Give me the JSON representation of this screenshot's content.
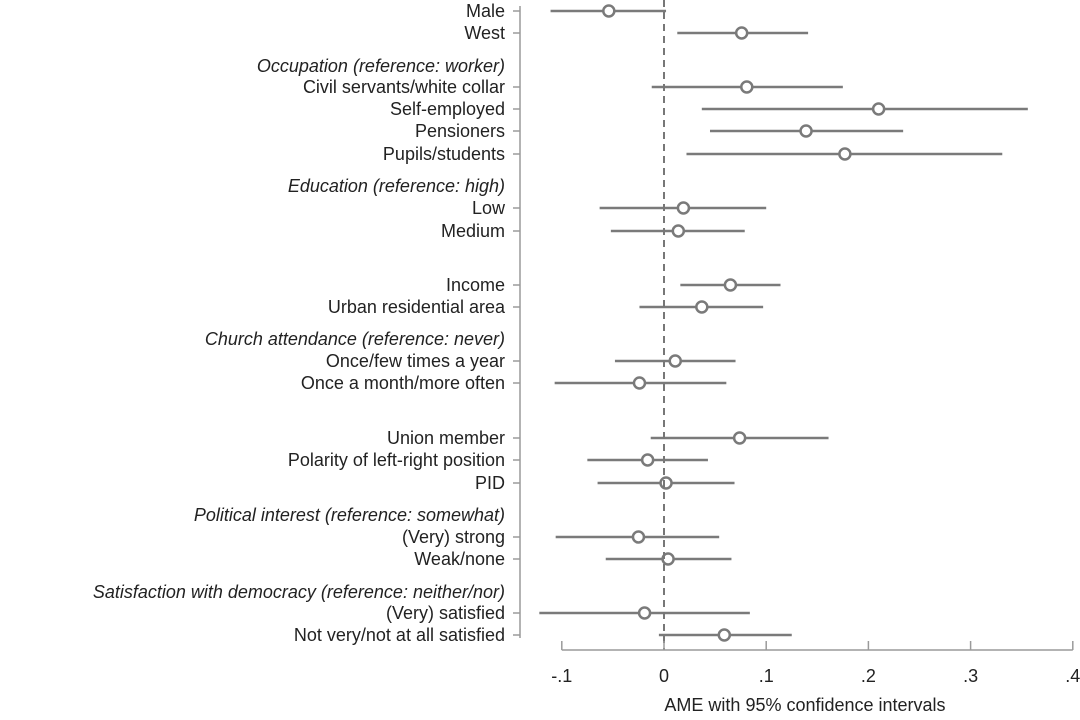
{
  "chart_data": {
    "type": "coefficient-plot",
    "xlabel": "AME with 95% confidence intervals",
    "xlim": [
      -0.12,
      0.4
    ],
    "xticks": [
      -0.1,
      0,
      0.1,
      0.2,
      0.3,
      0.4
    ],
    "xtick_labels": [
      "-.1",
      "0",
      ".1",
      ".2",
      ".3",
      ".4"
    ],
    "reference_line": 0,
    "colors": {
      "marker": "#7a7a7a",
      "axis": "#9a9a9a",
      "refline": "#777777"
    },
    "rows": [
      {
        "type": "item",
        "label": "Male",
        "est": -0.054,
        "lo": -0.111,
        "hi": 0.002
      },
      {
        "type": "item",
        "label": "West",
        "est": 0.076,
        "lo": 0.013,
        "hi": 0.141
      },
      {
        "type": "header",
        "label": "Occupation (reference: worker)"
      },
      {
        "type": "item",
        "label": "Civil servants/white collar",
        "est": 0.081,
        "lo": -0.012,
        "hi": 0.175
      },
      {
        "type": "item",
        "label": "Self-employed",
        "est": 0.21,
        "lo": 0.037,
        "hi": 0.356
      },
      {
        "type": "item",
        "label": "Pensioners",
        "est": 0.139,
        "lo": 0.045,
        "hi": 0.234
      },
      {
        "type": "item",
        "label": "Pupils/students",
        "est": 0.177,
        "lo": 0.022,
        "hi": 0.331
      },
      {
        "type": "header",
        "label": "Education (reference: high)"
      },
      {
        "type": "item",
        "label": "Low",
        "est": 0.019,
        "lo": -0.063,
        "hi": 0.1
      },
      {
        "type": "item",
        "label": "Medium",
        "est": 0.014,
        "lo": -0.052,
        "hi": 0.079
      },
      {
        "type": "item",
        "label": "Income",
        "est": 0.065,
        "lo": 0.016,
        "hi": 0.114
      },
      {
        "type": "item",
        "label": "Urban residential area",
        "est": 0.037,
        "lo": -0.024,
        "hi": 0.097
      },
      {
        "type": "header",
        "label": "Church attendance (reference: never)"
      },
      {
        "type": "item",
        "label": "Once/few times a year",
        "est": 0.011,
        "lo": -0.048,
        "hi": 0.07
      },
      {
        "type": "item",
        "label": "Once a month/more often",
        "est": -0.024,
        "lo": -0.107,
        "hi": 0.061
      },
      {
        "type": "item",
        "label": "Union member",
        "est": 0.074,
        "lo": -0.013,
        "hi": 0.161
      },
      {
        "type": "item",
        "label": "Polarity of left-right position",
        "est": -0.016,
        "lo": -0.075,
        "hi": 0.043
      },
      {
        "type": "item",
        "label": "PID",
        "est": 0.002,
        "lo": -0.065,
        "hi": 0.069
      },
      {
        "type": "header",
        "label": "Political interest (reference: somewhat)"
      },
      {
        "type": "item",
        "label": "(Very) strong",
        "est": -0.025,
        "lo": -0.106,
        "hi": 0.054
      },
      {
        "type": "item",
        "label": "Weak/none",
        "est": 0.004,
        "lo": -0.057,
        "hi": 0.066
      },
      {
        "type": "header",
        "label": "Satisfaction with democracy (reference: neither/nor)"
      },
      {
        "type": "item",
        "label": "(Very) satisfied",
        "est": -0.019,
        "lo": -0.122,
        "hi": 0.084
      },
      {
        "type": "item",
        "label": "Not very/not at all satisfied",
        "est": 0.059,
        "lo": -0.005,
        "hi": 0.125
      }
    ]
  }
}
